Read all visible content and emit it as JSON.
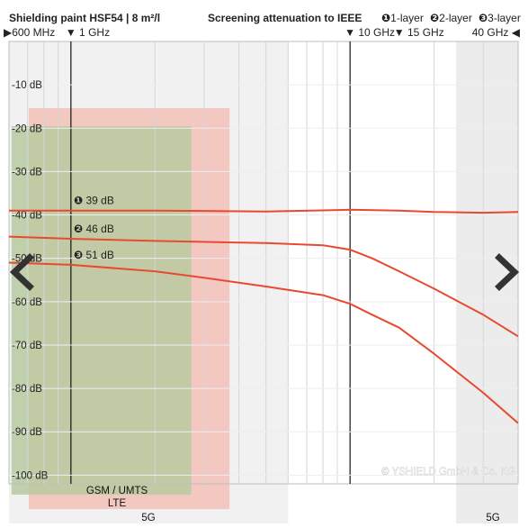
{
  "header": {
    "title": "Shielding paint HSF54 | 8 m²/l",
    "subtitle": "Screening attenuation to IEEE",
    "legend": [
      {
        "marker": "❶",
        "label": "1-layer"
      },
      {
        "marker": "❷",
        "label": "2-layer"
      },
      {
        "marker": "❸",
        "label": "3-layer"
      }
    ]
  },
  "freq_markers": [
    {
      "label": "600 MHz",
      "glyph": "▶",
      "ghz": 0.6
    },
    {
      "label": "1 GHz",
      "glyph": "▼",
      "ghz": 1
    },
    {
      "label": "10 GHz",
      "glyph": "▼",
      "ghz": 10
    },
    {
      "label": "15 GHz",
      "glyph": "▼",
      "ghz": 15
    },
    {
      "label": "40 GHz",
      "glyph": "◀",
      "ghz": 40
    }
  ],
  "copyright": "© YSHIELD GmbH & Co. KG",
  "bands": [
    {
      "label": "GSM / UMTS",
      "from_ghz": 0.7,
      "to_ghz": 2.7
    },
    {
      "label": "LTE",
      "from_ghz": 0.7,
      "to_ghz": 2.7
    },
    {
      "label": "5G",
      "from_ghz": 0.6,
      "to_ghz": 6
    },
    {
      "label": "5G",
      "from_ghz": 24,
      "to_ghz": 40
    }
  ],
  "navigation": {
    "prev_label": "‹",
    "next_label": "›"
  },
  "colors": {
    "series": "#e8492f",
    "grid_minor": "#d6d6d6",
    "marker_line": "#111111",
    "band_red": "#f4b6ac",
    "band_green": "#b8caa0",
    "band_grey": "#e6e6e6",
    "arrow": "#333333"
  },
  "chart_data": {
    "type": "line",
    "x_scale": "log",
    "xlim_ghz": [
      0.6,
      40
    ],
    "ylim": [
      -102,
      0
    ],
    "ylabel_ticks": [
      "-10 dB",
      "-20 dB",
      "-30 dB",
      "-40 dB",
      "-50 dB",
      "-60 dB",
      "-70 dB",
      "-80 dB",
      "-90 dB",
      "-100 dB"
    ],
    "ytick_values": [
      -10,
      -20,
      -30,
      -40,
      -50,
      -60,
      -70,
      -80,
      -90,
      -100
    ],
    "annotations": [
      {
        "marker": "❶",
        "text": "39 dB"
      },
      {
        "marker": "❷",
        "text": "46 dB"
      },
      {
        "marker": "❸",
        "text": "51 dB"
      }
    ],
    "series": [
      {
        "name": "1-layer",
        "x": [
          0.6,
          1,
          2,
          5,
          10,
          15,
          20,
          30,
          40
        ],
        "y": [
          -39,
          -39,
          -39,
          -39.2,
          -38.8,
          -39,
          -39.3,
          -39.5,
          -39.3
        ]
      },
      {
        "name": "2-layer",
        "x": [
          0.6,
          1,
          2,
          5,
          8,
          10,
          12,
          15,
          20,
          30,
          40
        ],
        "y": [
          -45,
          -45.5,
          -46,
          -46.5,
          -47,
          -48,
          -50,
          -53,
          -57,
          -63,
          -68
        ]
      },
      {
        "name": "3-layer",
        "x": [
          0.6,
          1,
          2,
          3,
          5,
          8,
          10,
          12,
          15,
          20,
          30,
          40
        ],
        "y": [
          -51,
          -51.5,
          -53,
          -54.5,
          -56.5,
          -58.5,
          -60.5,
          -63,
          -66,
          -72,
          -81,
          -88
        ]
      }
    ]
  }
}
